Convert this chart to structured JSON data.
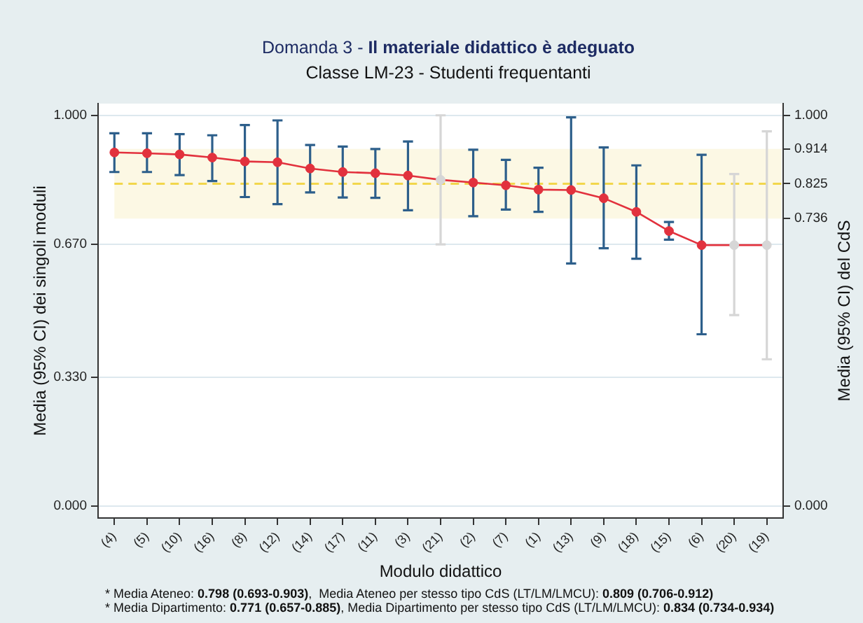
{
  "chart_data": {
    "type": "line",
    "title": "Domanda 3 - Il materiale didattico è adeguato",
    "subtitle": "Classe LM-23 - Studenti frequentanti",
    "xlabel": "Modulo didattico",
    "ylabel": "Media (95% CI) dei singoli moduli",
    "y2label": "Media (95% CI) del CdS",
    "categories": [
      "(4)",
      "(5)",
      "(10)",
      "(16)",
      "(8)",
      "(12)",
      "(14)",
      "(17)",
      "(11)",
      "(3)",
      "(21)",
      "(2)",
      "(7)",
      "(1)",
      "(13)",
      "(9)",
      "(18)",
      "(15)",
      "(6)",
      "(20)",
      "(19)"
    ],
    "series": [
      {
        "type": "line",
        "marker": "circle",
        "color": "#e2313d",
        "colors": [
          "#e2313d",
          "#e2313d",
          "#e2313d",
          "#e2313d",
          "#e2313d",
          "#e2313d",
          "#e2313d",
          "#e2313d",
          "#e2313d",
          "#e2313d",
          "#d6d6d6",
          "#e2313d",
          "#e2313d",
          "#e2313d",
          "#e2313d",
          "#e2313d",
          "#e2313d",
          "#e2313d",
          "#e2313d",
          "#d6d6d6",
          "#d6d6d6"
        ],
        "values": [
          0.905,
          0.903,
          0.9,
          0.892,
          0.882,
          0.88,
          0.864,
          0.855,
          0.852,
          0.846,
          0.835,
          0.828,
          0.821,
          0.81,
          0.809,
          0.788,
          0.753,
          0.704,
          0.668,
          0.668,
          0.668
        ],
        "errors": [
          [
            0.855,
            0.954
          ],
          [
            0.855,
            0.954
          ],
          [
            0.847,
            0.952
          ],
          [
            0.832,
            0.949
          ],
          [
            0.791,
            0.975
          ],
          [
            0.773,
            0.987
          ],
          [
            0.803,
            0.924
          ],
          [
            0.79,
            0.92
          ],
          [
            0.789,
            0.914
          ],
          [
            0.757,
            0.933
          ],
          [
            0.67,
            1.0
          ],
          [
            0.742,
            0.912
          ],
          [
            0.759,
            0.886
          ],
          [
            0.753,
            0.866
          ],
          [
            0.621,
            0.995
          ],
          [
            0.66,
            0.918
          ],
          [
            0.633,
            0.872
          ],
          [
            0.682,
            0.727
          ],
          [
            0.44,
            0.899
          ],
          [
            0.489,
            0.85
          ],
          [
            0.376,
            0.959
          ]
        ]
      }
    ],
    "ylim": [
      -0.03,
      1.03
    ],
    "yticks": [
      {
        "value": 0,
        "label": "0.000"
      },
      {
        "value": 0.33,
        "label": "0.330"
      },
      {
        "value": 0.67,
        "label": "0.670"
      },
      {
        "value": 1,
        "label": "1.000"
      }
    ],
    "y2lim": [
      -0.03,
      1.03
    ],
    "y2ticks": [
      {
        "value": 0,
        "label": "0.000"
      },
      0.736,
      0.825,
      0.914,
      {
        "value": 1,
        "label": "1.000"
      }
    ],
    "bands": [
      {
        "axis": "y2",
        "from": 0.736,
        "to": 0.914,
        "color": "#fcf8e4"
      }
    ],
    "ref_lines": [
      {
        "axis": "y2",
        "value": 0.825,
        "color": "#f2d64b",
        "line_style": "dashed"
      }
    ],
    "grid": "y",
    "legend": false,
    "annotations": [
      "* Media Ateneo: 0.798 (0.693-0.903),  Media Ateneo per stesso tipo CdS (LT/LM/LMCU): 0.809 (0.706-0.912)",
      "* Media Dipartimento: 0.771 (0.657-0.885), Media Dipartimento per stesso tipo CdS (LT/LM/LMCU): 0.834 (0.734-0.934)"
    ]
  }
}
